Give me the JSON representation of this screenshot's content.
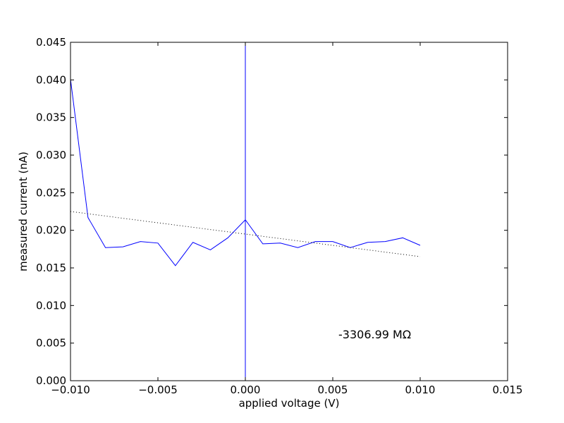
{
  "chart_data": {
    "type": "line",
    "xlabel": "applied voltage (V)",
    "ylabel": "measured current (nA)",
    "xlim": [
      -0.01,
      0.015
    ],
    "ylim": [
      0.0,
      0.045
    ],
    "x_ticks": [
      "−0.010",
      "−0.005",
      "0.000",
      "0.005",
      "0.010",
      "0.015"
    ],
    "x_tick_values": [
      -0.01,
      -0.005,
      0.0,
      0.005,
      0.01,
      0.015
    ],
    "y_ticks": [
      "0.000",
      "0.005",
      "0.010",
      "0.015",
      "0.020",
      "0.025",
      "0.030",
      "0.035",
      "0.040",
      "0.045"
    ],
    "y_tick_values": [
      0.0,
      0.005,
      0.01,
      0.015,
      0.02,
      0.025,
      0.03,
      0.035,
      0.04,
      0.045
    ],
    "grid": false,
    "annotation": "-3306.99 MΩ",
    "series": [
      {
        "color": "#0000ff",
        "style": "solid",
        "x": [
          -0.01,
          -0.009,
          -0.008,
          -0.007,
          -0.006,
          -0.005,
          -0.004,
          -0.003,
          -0.002,
          -0.001,
          0.0,
          0.001,
          0.002,
          0.003,
          0.004,
          0.005,
          0.006,
          0.007,
          0.008,
          0.009,
          0.01
        ],
        "y": [
          0.0401,
          0.0217,
          0.0177,
          0.0178,
          0.0185,
          0.0183,
          0.0153,
          0.0184,
          0.0174,
          0.019,
          0.0214,
          0.0182,
          0.0183,
          0.0177,
          0.0185,
          0.0185,
          0.0177,
          0.0184,
          0.0185,
          0.019,
          0.018
        ]
      },
      {
        "color": "#000000",
        "style": "dotted",
        "x": [
          -0.01,
          0.01
        ],
        "y": [
          0.0225,
          0.0165
        ]
      }
    ],
    "vertical_line": {
      "x": 0.0,
      "color": "#0000ff"
    }
  }
}
